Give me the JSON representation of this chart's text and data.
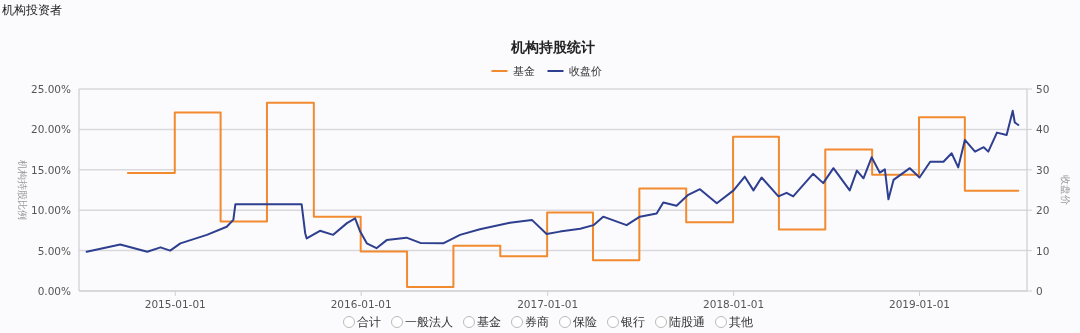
{
  "chart_data": {
    "type": "line",
    "title": "机构持股统计",
    "ylabel": "机构持股比例",
    "y2label": "收盘价",
    "annotations": [
      "机构投资者",
      "合计",
      "一般法人",
      "基金",
      "券商",
      "保险",
      "银行",
      "陆股通",
      "其他"
    ],
    "xlim": [
      "2014-06-26",
      "2019-07-31"
    ],
    "xticks": [
      "2015-01-01",
      "2016-01-01",
      "2017-01-01",
      "2018-01-01",
      "2019-01-01"
    ],
    "ylim": [
      0,
      25
    ],
    "yticks": [
      {
        "value": 0,
        "label": "0.00%"
      },
      {
        "value": 5,
        "label": "5.00%"
      },
      {
        "value": 10,
        "label": "10.00%"
      },
      {
        "value": 15,
        "label": "15.00%"
      },
      {
        "value": 20,
        "label": "20.00%"
      },
      {
        "value": 25,
        "label": "25.00%"
      }
    ],
    "y2lim": [
      0,
      50
    ],
    "y2ticks": [
      0,
      10,
      20,
      30,
      40,
      50
    ],
    "grid": "y",
    "legend": "top",
    "series": [
      {
        "name": "基金",
        "type": "step",
        "color": "#f28a30",
        "x": [
          "2014-09-30",
          "2014-12-31",
          "2015-03-31",
          "2015-06-30",
          "2015-09-30",
          "2015-12-31",
          "2016-03-31",
          "2016-06-30",
          "2016-09-30",
          "2016-12-31",
          "2017-03-31",
          "2017-06-30",
          "2017-09-30",
          "2017-12-31",
          "2018-03-31",
          "2018-06-30",
          "2018-09-30",
          "2018-12-31",
          "2019-03-31",
          "2019-07-14"
        ],
        "values": [
          14.6,
          22.1,
          8.6,
          23.3,
          9.2,
          4.9,
          0.5,
          5.6,
          4.3,
          9.7,
          3.8,
          12.7,
          8.5,
          19.1,
          7.6,
          17.5,
          14.4,
          21.5,
          12.4,
          12.4
        ]
      },
      {
        "name": "收盘价",
        "axis": "y2",
        "color": "#2e3f8f",
        "x": [
          "2014-07-11",
          "2014-09-15",
          "2014-11-07",
          "2014-12-03",
          "2014-12-22",
          "2015-01-11",
          "2015-03-04",
          "2015-04-12",
          "2015-04-25",
          "2015-04-29",
          "2015-09-06",
          "2015-09-13",
          "2015-09-16",
          "2015-10-12",
          "2015-11-07",
          "2015-12-04",
          "2015-12-20",
          "2015-12-30",
          "2016-01-12",
          "2016-01-31",
          "2016-02-20",
          "2016-03-30",
          "2016-04-26",
          "2016-06-10",
          "2016-07-13",
          "2016-08-21",
          "2016-10-19",
          "2016-12-01",
          "2016-12-30",
          "2017-01-25",
          "2017-03-06",
          "2017-04-01",
          "2017-04-20",
          "2017-06-05",
          "2017-07-01",
          "2017-08-03",
          "2017-08-16",
          "2017-09-11",
          "2017-10-04",
          "2017-10-27",
          "2017-11-29",
          "2018-01-01",
          "2018-01-23",
          "2018-02-09",
          "2018-02-25",
          "2018-03-30",
          "2018-04-15",
          "2018-04-28",
          "2018-06-06",
          "2018-06-26",
          "2018-07-16",
          "2018-08-17",
          "2018-08-31",
          "2018-09-13",
          "2018-09-29",
          "2018-10-15",
          "2018-10-25",
          "2018-11-01",
          "2018-11-11",
          "2018-12-13",
          "2019-01-01",
          "2019-01-22",
          "2019-02-17",
          "2019-03-05",
          "2019-03-18",
          "2019-03-31",
          "2019-04-20",
          "2019-05-07",
          "2019-05-16",
          "2019-06-02",
          "2019-06-21",
          "2019-07-03",
          "2019-07-07",
          "2019-07-14"
        ],
        "values": [
          9.7,
          11.5,
          9.7,
          10.8,
          10.0,
          11.8,
          13.9,
          15.9,
          17.6,
          21.5,
          21.5,
          14.3,
          13.0,
          14.9,
          13.9,
          16.8,
          18.0,
          14.7,
          11.8,
          10.6,
          12.6,
          13.2,
          11.9,
          11.8,
          13.9,
          15.3,
          16.9,
          17.6,
          14.1,
          14.7,
          15.4,
          16.3,
          18.4,
          16.3,
          18.4,
          19.2,
          21.9,
          21.1,
          23.8,
          25.2,
          21.7,
          24.9,
          28.3,
          24.9,
          28.1,
          23.4,
          24.3,
          23.4,
          29.0,
          26.7,
          30.4,
          24.9,
          29.8,
          27.9,
          33.1,
          29.3,
          30.1,
          22.7,
          27.5,
          30.4,
          28.1,
          32.0,
          32.0,
          34.1,
          30.6,
          37.4,
          34.5,
          35.6,
          34.5,
          39.2,
          38.6,
          44.6,
          41.7,
          41.1
        ]
      }
    ]
  }
}
